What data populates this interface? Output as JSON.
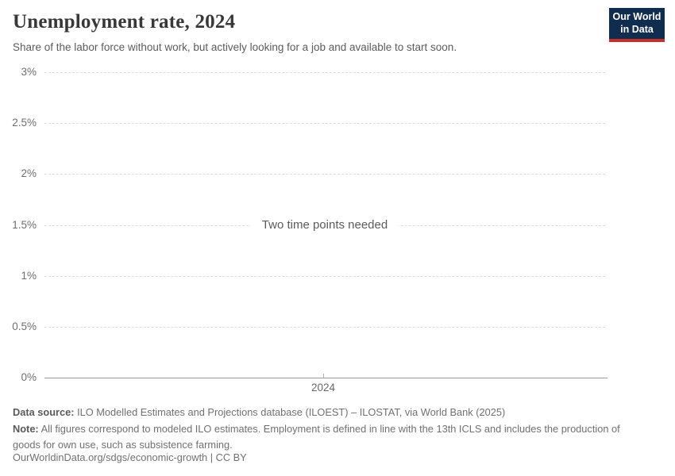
{
  "header": {
    "title": "Unemployment rate, 2024",
    "subtitle": "Share of the labor force without work, but actively looking for a job and available to start soon.",
    "logo": {
      "line1": "Our World",
      "line2": "in Data",
      "bg_color": "#102d50",
      "accent_color": "#c5302a"
    }
  },
  "chart_data": {
    "type": "line",
    "title": "Unemployment rate, 2024",
    "series": [],
    "message": "Two time points needed",
    "xlabel": "",
    "ylabel": "",
    "ylim": [
      0,
      3
    ],
    "y_unit": "%",
    "grid": true,
    "y_ticks": [
      {
        "label": "0%",
        "value": 0
      },
      {
        "label": "0.5%",
        "value": 0.5
      },
      {
        "label": "1%",
        "value": 1
      },
      {
        "label": "1.5%",
        "value": 1.5
      },
      {
        "label": "2%",
        "value": 2
      },
      {
        "label": "2.5%",
        "value": 2.5
      },
      {
        "label": "3%",
        "value": 3
      }
    ],
    "x_ticks": [
      {
        "label": "2024",
        "pos": 0.497
      }
    ]
  },
  "footer": {
    "datasource_label": "Data source:",
    "datasource_text": "ILO Modelled Estimates and Projections database (ILOEST) – ILOSTAT, via World Bank (2025)",
    "note_label": "Note:",
    "note_text": "All figures correspond to modeled ILO estimates. Employment is defined in line with the 13th ICLS and includes the production of goods for own use, such as subsistence farming.",
    "citation": "OurWorldinData.org/sdgs/economic-growth | CC BY"
  },
  "colors": {
    "title": "#383838",
    "subtitle": "#5b5b5b",
    "tick_label": "#6e6e6e",
    "gridline": "#dcdcdc",
    "axis_line": "#9a9a9a",
    "footer_text": "#707070"
  }
}
